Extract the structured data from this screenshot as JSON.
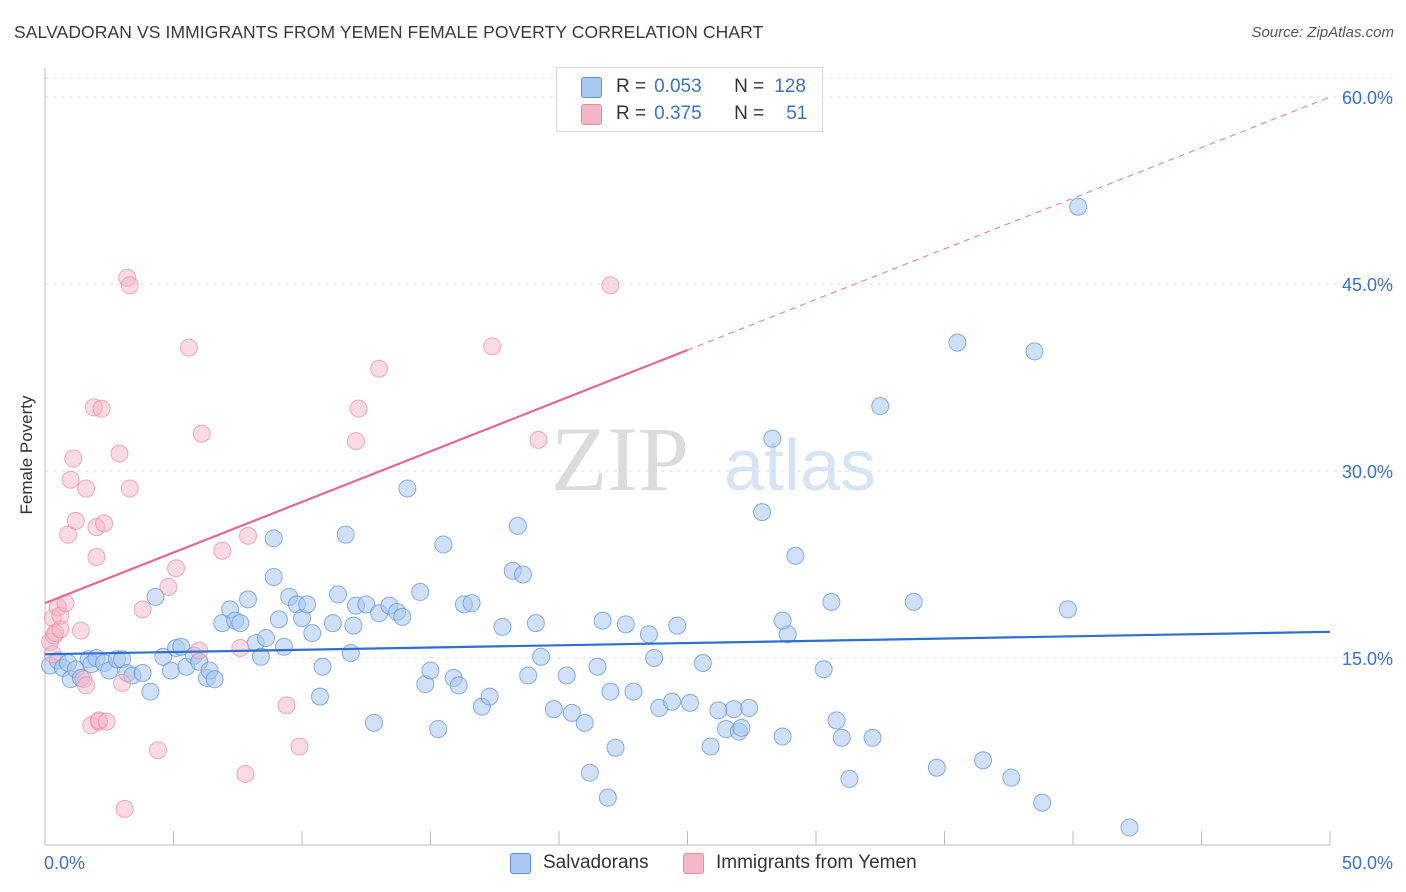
{
  "header": {
    "title": "SALVADORAN VS IMMIGRANTS FROM YEMEN FEMALE POVERTY CORRELATION CHART",
    "source": "Source: ZipAtlas.com"
  },
  "legend_top": {
    "rows": [
      {
        "r_label": "R =",
        "r_value": "0.053",
        "n_label": "N =",
        "n_value": "128"
      },
      {
        "r_label": "R =",
        "r_value": "0.375",
        "n_label": "N =",
        "n_value": "51"
      }
    ]
  },
  "watermark": {
    "zip": "ZIP",
    "atlas": "atlas"
  },
  "colors": {
    "blue_fill": "#a9c9f1",
    "blue_stroke": "#5b8fd9",
    "blue_line": "#2f6fce",
    "pink_fill": "#f6b6c9",
    "pink_stroke": "#e88aa6",
    "pink_line": "#e26a91",
    "axis_text": "#3b73c4",
    "grid": "#dddddd"
  },
  "chart_data": {
    "type": "scatter",
    "title": "SALVADORAN VS IMMIGRANTS FROM YEMEN FEMALE POVERTY CORRELATION CHART",
    "xlabel": "",
    "ylabel": "Female Poverty",
    "xlim": [
      0,
      50
    ],
    "ylim": [
      0,
      60
    ],
    "x_tick_labels": [
      "0.0%",
      "50.0%"
    ],
    "y_tick_labels": [
      "15.0%",
      "30.0%",
      "45.0%",
      "60.0%"
    ],
    "y_ticks": [
      15,
      30,
      45,
      60
    ],
    "grid": true,
    "legend_position": "bottom",
    "series": [
      {
        "name": "Salvadorans",
        "color": "#a9c9f1",
        "trend": {
          "x": [
            0,
            50
          ],
          "y": [
            15.3,
            17.1
          ],
          "style": "solid"
        },
        "points": [
          [
            0.2,
            14.4
          ],
          [
            0.5,
            14.8
          ],
          [
            0.7,
            14.2
          ],
          [
            0.9,
            14.6
          ],
          [
            1.0,
            13.3
          ],
          [
            1.2,
            14.1
          ],
          [
            1.4,
            13.4
          ],
          [
            1.7,
            14.9
          ],
          [
            1.8,
            14.5
          ],
          [
            2.0,
            15.0
          ],
          [
            2.3,
            14.6
          ],
          [
            2.5,
            14.0
          ],
          [
            2.8,
            14.9
          ],
          [
            3.0,
            14.9
          ],
          [
            3.2,
            13.8
          ],
          [
            3.4,
            13.6
          ],
          [
            3.8,
            13.8
          ],
          [
            4.1,
            12.3
          ],
          [
            4.3,
            19.9
          ],
          [
            4.6,
            15.1
          ],
          [
            4.9,
            14.0
          ],
          [
            5.1,
            15.8
          ],
          [
            5.3,
            15.9
          ],
          [
            5.5,
            14.3
          ],
          [
            5.8,
            15.2
          ],
          [
            6.0,
            14.7
          ],
          [
            6.3,
            13.4
          ],
          [
            6.4,
            14.0
          ],
          [
            6.6,
            13.3
          ],
          [
            6.9,
            17.8
          ],
          [
            7.2,
            18.9
          ],
          [
            7.4,
            18.0
          ],
          [
            7.6,
            17.8
          ],
          [
            7.9,
            19.7
          ],
          [
            8.2,
            16.2
          ],
          [
            8.4,
            15.1
          ],
          [
            8.6,
            16.6
          ],
          [
            8.9,
            21.5
          ],
          [
            8.9,
            24.6
          ],
          [
            9.3,
            15.9
          ],
          [
            9.5,
            19.9
          ],
          [
            9.8,
            19.3
          ],
          [
            10.0,
            18.2
          ],
          [
            10.2,
            19.3
          ],
          [
            10.4,
            17.0
          ],
          [
            10.7,
            11.9
          ],
          [
            10.8,
            14.3
          ],
          [
            11.2,
            17.8
          ],
          [
            11.4,
            20.1
          ],
          [
            11.7,
            24.9
          ],
          [
            11.9,
            15.4
          ],
          [
            12.1,
            19.2
          ],
          [
            12.5,
            19.3
          ],
          [
            12.8,
            9.8
          ],
          [
            13.0,
            18.6
          ],
          [
            13.4,
            19.2
          ],
          [
            13.7,
            18.7
          ],
          [
            13.9,
            18.3
          ],
          [
            14.1,
            28.6
          ],
          [
            14.6,
            20.3
          ],
          [
            14.8,
            12.9
          ],
          [
            15.0,
            14.0
          ],
          [
            15.3,
            9.3
          ],
          [
            15.5,
            24.1
          ],
          [
            15.9,
            13.4
          ],
          [
            16.1,
            12.8
          ],
          [
            16.3,
            19.3
          ],
          [
            16.6,
            19.4
          ],
          [
            17.0,
            11.1
          ],
          [
            17.3,
            11.9
          ],
          [
            17.8,
            17.5
          ],
          [
            18.2,
            22.0
          ],
          [
            18.6,
            21.7
          ],
          [
            18.8,
            13.6
          ],
          [
            19.1,
            17.8
          ],
          [
            19.3,
            15.1
          ],
          [
            19.8,
            10.9
          ],
          [
            20.3,
            13.6
          ],
          [
            20.5,
            10.6
          ],
          [
            21.0,
            9.8
          ],
          [
            21.5,
            14.3
          ],
          [
            21.7,
            18.0
          ],
          [
            22.0,
            12.3
          ],
          [
            22.2,
            7.8
          ],
          [
            22.6,
            17.7
          ],
          [
            22.9,
            12.3
          ],
          [
            23.5,
            16.9
          ],
          [
            23.7,
            15.0
          ],
          [
            23.9,
            11.0
          ],
          [
            24.4,
            11.5
          ],
          [
            24.6,
            17.6
          ],
          [
            25.1,
            11.4
          ],
          [
            25.6,
            14.6
          ],
          [
            25.9,
            7.9
          ],
          [
            26.5,
            9.3
          ],
          [
            26.8,
            10.9
          ],
          [
            27.0,
            9.1
          ],
          [
            27.1,
            9.4
          ],
          [
            27.4,
            11.0
          ],
          [
            27.9,
            26.7
          ],
          [
            28.3,
            32.6
          ],
          [
            28.7,
            8.7
          ],
          [
            28.9,
            16.9
          ],
          [
            29.2,
            23.2
          ],
          [
            30.3,
            14.1
          ],
          [
            30.6,
            19.5
          ],
          [
            30.8,
            10.0
          ],
          [
            31.0,
            8.6
          ],
          [
            31.3,
            5.3
          ],
          [
            32.2,
            8.6
          ],
          [
            32.5,
            35.2
          ],
          [
            33.8,
            19.5
          ],
          [
            34.7,
            6.2
          ],
          [
            35.5,
            40.3
          ],
          [
            36.5,
            6.8
          ],
          [
            37.6,
            5.4
          ],
          [
            38.5,
            39.6
          ],
          [
            38.8,
            3.4
          ],
          [
            39.8,
            18.9
          ],
          [
            42.2,
            1.4
          ],
          [
            40.2,
            51.2
          ],
          [
            21.9,
            3.8
          ],
          [
            21.2,
            5.8
          ],
          [
            18.4,
            25.6
          ],
          [
            28.7,
            18.0
          ],
          [
            26.2,
            10.8
          ],
          [
            9.1,
            18.1
          ],
          [
            12.0,
            17.6
          ]
        ]
      },
      {
        "name": "Immigrants from Yemen",
        "color": "#f6b6c9",
        "trend": {
          "x": [
            0,
            50
          ],
          "y": [
            19.4,
            60.0
          ],
          "style": "solid to x=25, dashed beyond"
        },
        "points": [
          [
            0.2,
            16.3
          ],
          [
            0.3,
            18.2
          ],
          [
            0.35,
            16.8
          ],
          [
            0.4,
            17.0
          ],
          [
            0.5,
            19.1
          ],
          [
            0.6,
            17.3
          ],
          [
            0.6,
            18.4
          ],
          [
            0.8,
            19.4
          ],
          [
            0.9,
            24.9
          ],
          [
            1.0,
            29.3
          ],
          [
            1.1,
            31.0
          ],
          [
            1.2,
            26.0
          ],
          [
            1.4,
            17.2
          ],
          [
            1.5,
            13.3
          ],
          [
            1.6,
            12.8
          ],
          [
            1.6,
            28.6
          ],
          [
            1.8,
            9.6
          ],
          [
            1.9,
            35.1
          ],
          [
            2.0,
            25.5
          ],
          [
            2.0,
            23.1
          ],
          [
            2.1,
            9.9
          ],
          [
            2.1,
            10.0
          ],
          [
            2.2,
            35.0
          ],
          [
            2.3,
            25.8
          ],
          [
            2.4,
            9.9
          ],
          [
            2.9,
            31.4
          ],
          [
            3.0,
            13.0
          ],
          [
            3.2,
            45.5
          ],
          [
            3.3,
            44.9
          ],
          [
            3.3,
            28.6
          ],
          [
            3.8,
            18.9
          ],
          [
            4.4,
            7.6
          ],
          [
            4.8,
            20.7
          ],
          [
            5.1,
            22.2
          ],
          [
            5.6,
            39.9
          ],
          [
            6.0,
            15.6
          ],
          [
            6.1,
            33.0
          ],
          [
            6.9,
            23.6
          ],
          [
            7.6,
            15.8
          ],
          [
            7.8,
            5.7
          ],
          [
            7.9,
            24.8
          ],
          [
            9.4,
            11.2
          ],
          [
            9.9,
            7.9
          ],
          [
            12.1,
            32.4
          ],
          [
            12.2,
            35.0
          ],
          [
            13.0,
            38.2
          ],
          [
            17.4,
            40.0
          ],
          [
            19.2,
            32.5
          ],
          [
            22.0,
            44.9
          ],
          [
            3.1,
            2.9
          ],
          [
            0.3,
            15.3
          ]
        ]
      }
    ]
  },
  "legend_bottom": {
    "items": [
      {
        "label": "Salvadorans"
      },
      {
        "label": "Immigrants from Yemen"
      }
    ]
  }
}
